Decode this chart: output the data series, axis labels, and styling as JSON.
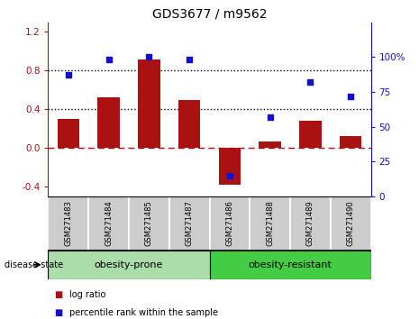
{
  "title": "GDS3677 / m9562",
  "samples": [
    "GSM271483",
    "GSM271484",
    "GSM271485",
    "GSM271487",
    "GSM271486",
    "GSM271488",
    "GSM271489",
    "GSM271490"
  ],
  "log_ratio": [
    0.3,
    0.52,
    0.92,
    0.5,
    -0.38,
    0.07,
    0.28,
    0.12
  ],
  "percentile_rank": [
    87,
    98,
    100,
    98,
    15,
    57,
    82,
    72
  ],
  "group1_label": "obesity-prone",
  "group1_count": 4,
  "group2_label": "obesity-resistant",
  "group2_count": 4,
  "disease_state_label": "disease state",
  "legend_log_ratio": "log ratio",
  "legend_percentile": "percentile rank within the sample",
  "bar_color": "#AA1111",
  "dot_color": "#1111CC",
  "group1_color": "#AADDAA",
  "group2_color": "#44CC44",
  "sample_box_color": "#CCCCCC",
  "ylim_left": [
    -0.5,
    1.3
  ],
  "ylim_right": [
    0,
    125
  ],
  "yticks_left": [
    -0.4,
    0.0,
    0.4,
    0.8,
    1.2
  ],
  "yticks_right": [
    0,
    25,
    50,
    75,
    100
  ],
  "bar_width": 0.55
}
